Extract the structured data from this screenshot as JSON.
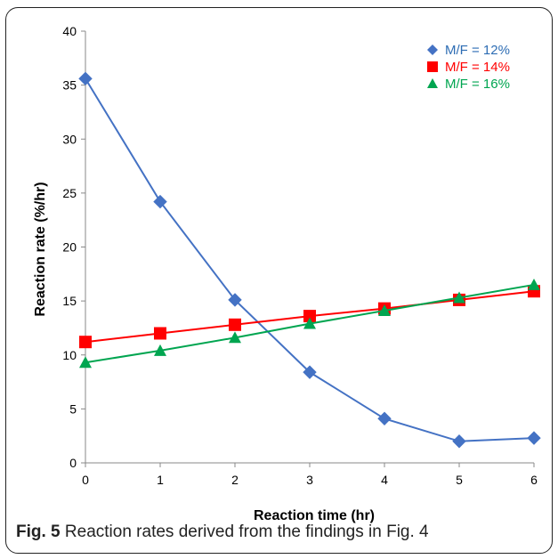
{
  "caption": {
    "label": "Fig. 5",
    "text": " Reaction rates derived from the findings in Fig. 4"
  },
  "chart_data": {
    "type": "line",
    "xlabel": "Reaction time (hr)",
    "ylabel": "Reaction rate (%/hr)",
    "xlim": [
      0,
      6
    ],
    "ylim": [
      0,
      40
    ],
    "xticks": [
      0,
      1,
      2,
      3,
      4,
      5,
      6
    ],
    "yticks": [
      0,
      5,
      10,
      15,
      20,
      25,
      30,
      35,
      40
    ],
    "grid": false,
    "legend_position": "top-right",
    "x": [
      0,
      1,
      2,
      3,
      4,
      5,
      6
    ],
    "series": [
      {
        "name": "M/F = 12%",
        "marker": "diamond",
        "color": "#4472C4",
        "label_color": "#2E6DB4",
        "values": [
          35.6,
          24.2,
          15.1,
          8.4,
          4.1,
          2.0,
          2.3
        ]
      },
      {
        "name": "M/F = 14%",
        "marker": "square",
        "color": "#FF0000",
        "label_color": "#FF0000",
        "values": [
          11.2,
          12.0,
          12.8,
          13.6,
          14.3,
          15.1,
          15.9
        ]
      },
      {
        "name": "M/F = 16%",
        "marker": "triangle",
        "color": "#00A550",
        "label_color": "#00A550",
        "values": [
          9.3,
          10.4,
          11.6,
          12.9,
          14.1,
          15.3,
          16.5
        ]
      }
    ]
  }
}
